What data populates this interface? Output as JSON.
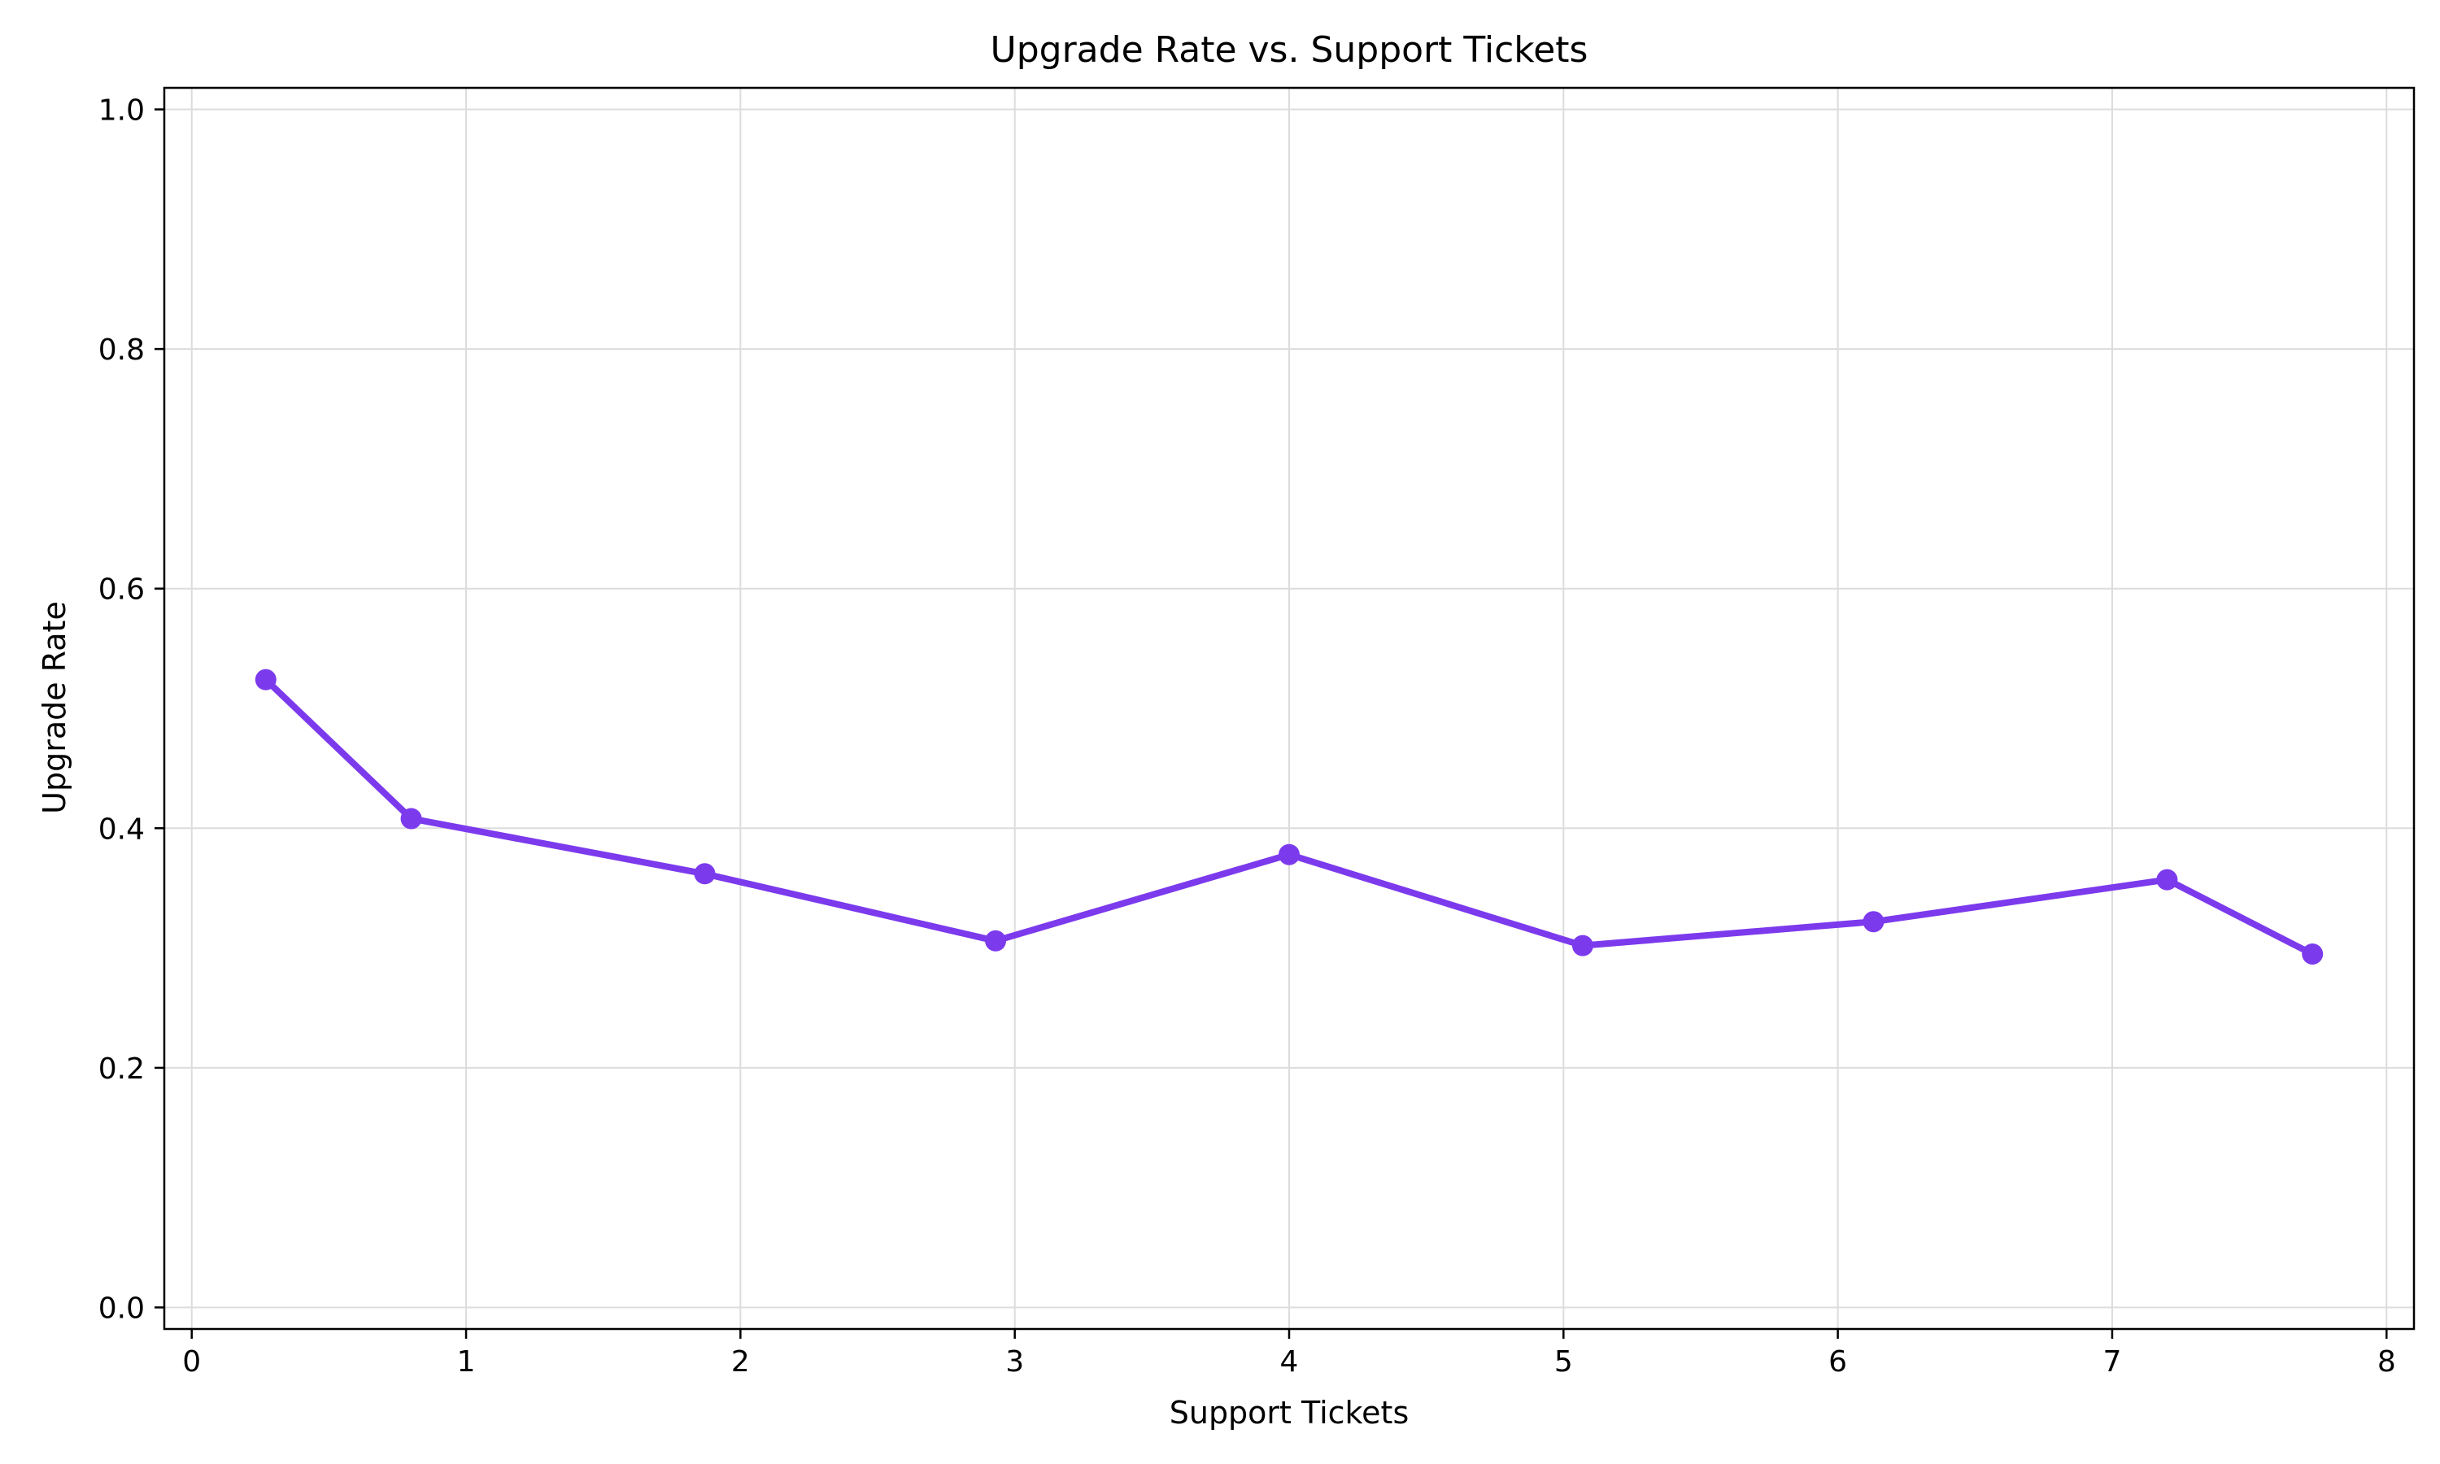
{
  "chart_data": {
    "type": "line",
    "title": "Upgrade Rate vs. Support Tickets",
    "xlabel": "Support Tickets",
    "ylabel": "Upgrade Rate",
    "xlim": [
      -0.1,
      8.1
    ],
    "ylim": [
      -0.018,
      1.018
    ],
    "xticks": [
      0,
      1,
      2,
      3,
      4,
      5,
      6,
      7,
      8
    ],
    "xtick_labels": [
      "0",
      "1",
      "2",
      "3",
      "4",
      "5",
      "6",
      "7",
      "8"
    ],
    "yticks": [
      0.0,
      0.2,
      0.4,
      0.6,
      0.8,
      1.0
    ],
    "ytick_labels": [
      "0.0",
      "0.2",
      "0.4",
      "0.6",
      "0.8",
      "1.0"
    ],
    "grid": true,
    "legend": "none",
    "series": [
      {
        "color": "#7c3aed",
        "x": [
          0.27,
          0.8,
          1.87,
          2.93,
          4.0,
          5.07,
          6.13,
          7.2,
          7.73
        ],
        "y": [
          0.524,
          0.408,
          0.362,
          0.306,
          0.378,
          0.302,
          0.322,
          0.357,
          0.295
        ]
      }
    ]
  }
}
